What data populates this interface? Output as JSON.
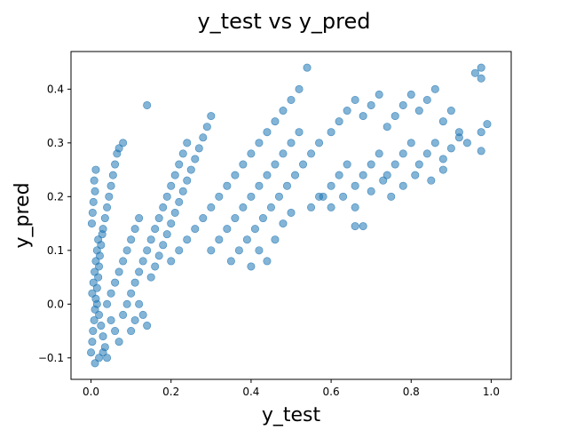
{
  "chart_data": {
    "type": "scatter",
    "title": "y_test vs y_pred",
    "xlabel": "y_test",
    "ylabel": "y_pred",
    "xlim": [
      -0.05,
      1.05
    ],
    "ylim": [
      -0.14,
      0.47
    ],
    "x_ticks": [
      0.0,
      0.2,
      0.4,
      0.6,
      0.8,
      1.0
    ],
    "x_tick_labels": [
      "0.0",
      "0.2",
      "0.4",
      "0.6",
      "0.8",
      "1.0"
    ],
    "y_ticks": [
      -0.1,
      0.0,
      0.1,
      0.2,
      0.3,
      0.4
    ],
    "y_tick_labels": [
      "−0.1",
      "0.0",
      "0.1",
      "0.2",
      "0.3",
      "0.4"
    ],
    "grid": false,
    "legend": "none",
    "marker_color": "#1f77b4",
    "marker_alpha": 0.55,
    "series": [
      {
        "points": [
          [
            0.0,
            -0.09
          ],
          [
            0.003,
            -0.07
          ],
          [
            0.005,
            -0.05
          ],
          [
            0.008,
            -0.03
          ],
          [
            0.01,
            -0.01
          ],
          [
            0.012,
            0.01
          ],
          [
            0.015,
            0.03
          ],
          [
            0.018,
            0.05
          ],
          [
            0.02,
            0.07
          ],
          [
            0.022,
            0.09
          ],
          [
            0.025,
            0.11
          ],
          [
            0.028,
            0.13
          ],
          [
            0.002,
            0.15
          ],
          [
            0.004,
            0.17
          ],
          [
            0.006,
            0.19
          ],
          [
            0.01,
            0.21
          ],
          [
            0.008,
            0.23
          ],
          [
            0.012,
            0.25
          ],
          [
            0.015,
            0.0
          ],
          [
            0.02,
            -0.02
          ],
          [
            0.025,
            -0.04
          ],
          [
            0.03,
            -0.06
          ],
          [
            0.035,
            -0.08
          ],
          [
            0.04,
            -0.1
          ],
          [
            0.003,
            0.02
          ],
          [
            0.006,
            0.04
          ],
          [
            0.009,
            0.06
          ],
          [
            0.012,
            0.08
          ],
          [
            0.015,
            0.1
          ],
          [
            0.018,
            0.12
          ],
          [
            0.03,
            0.14
          ],
          [
            0.035,
            0.16
          ],
          [
            0.04,
            0.18
          ],
          [
            0.045,
            0.2
          ],
          [
            0.05,
            0.22
          ],
          [
            0.055,
            0.24
          ],
          [
            0.06,
            0.26
          ],
          [
            0.065,
            0.28
          ],
          [
            0.07,
            0.29
          ],
          [
            0.04,
            0.0
          ],
          [
            0.05,
            0.02
          ],
          [
            0.06,
            0.04
          ],
          [
            0.07,
            0.06
          ],
          [
            0.08,
            0.08
          ],
          [
            0.09,
            0.1
          ],
          [
            0.1,
            0.12
          ],
          [
            0.11,
            0.14
          ],
          [
            0.12,
            0.16
          ],
          [
            0.05,
            -0.03
          ],
          [
            0.06,
            -0.05
          ],
          [
            0.07,
            -0.07
          ],
          [
            0.08,
            -0.02
          ],
          [
            0.09,
            0.0
          ],
          [
            0.1,
            0.02
          ],
          [
            0.11,
            0.04
          ],
          [
            0.12,
            0.06
          ],
          [
            0.13,
            0.08
          ],
          [
            0.14,
            0.1
          ],
          [
            0.15,
            0.12
          ],
          [
            0.16,
            0.14
          ],
          [
            0.17,
            0.16
          ],
          [
            0.18,
            0.18
          ],
          [
            0.19,
            0.2
          ],
          [
            0.2,
            0.22
          ],
          [
            0.21,
            0.24
          ],
          [
            0.22,
            0.26
          ],
          [
            0.23,
            0.28
          ],
          [
            0.24,
            0.3
          ],
          [
            0.15,
            0.05
          ],
          [
            0.16,
            0.07
          ],
          [
            0.17,
            0.09
          ],
          [
            0.18,
            0.11
          ],
          [
            0.19,
            0.13
          ],
          [
            0.2,
            0.15
          ],
          [
            0.21,
            0.17
          ],
          [
            0.22,
            0.19
          ],
          [
            0.23,
            0.21
          ],
          [
            0.24,
            0.23
          ],
          [
            0.25,
            0.25
          ],
          [
            0.26,
            0.27
          ],
          [
            0.27,
            0.29
          ],
          [
            0.28,
            0.31
          ],
          [
            0.29,
            0.33
          ],
          [
            0.3,
            0.35
          ],
          [
            0.2,
            0.08
          ],
          [
            0.22,
            0.1
          ],
          [
            0.24,
            0.12
          ],
          [
            0.26,
            0.14
          ],
          [
            0.28,
            0.16
          ],
          [
            0.3,
            0.18
          ],
          [
            0.32,
            0.2
          ],
          [
            0.34,
            0.22
          ],
          [
            0.36,
            0.24
          ],
          [
            0.38,
            0.26
          ],
          [
            0.4,
            0.28
          ],
          [
            0.42,
            0.3
          ],
          [
            0.44,
            0.32
          ],
          [
            0.46,
            0.34
          ],
          [
            0.48,
            0.36
          ],
          [
            0.5,
            0.38
          ],
          [
            0.52,
            0.4
          ],
          [
            0.54,
            0.44
          ],
          [
            0.3,
            0.1
          ],
          [
            0.32,
            0.12
          ],
          [
            0.34,
            0.14
          ],
          [
            0.36,
            0.16
          ],
          [
            0.38,
            0.18
          ],
          [
            0.4,
            0.2
          ],
          [
            0.42,
            0.22
          ],
          [
            0.44,
            0.24
          ],
          [
            0.46,
            0.26
          ],
          [
            0.48,
            0.28
          ],
          [
            0.5,
            0.3
          ],
          [
            0.52,
            0.32
          ],
          [
            0.35,
            0.08
          ],
          [
            0.37,
            0.1
          ],
          [
            0.39,
            0.12
          ],
          [
            0.41,
            0.14
          ],
          [
            0.43,
            0.16
          ],
          [
            0.45,
            0.18
          ],
          [
            0.47,
            0.2
          ],
          [
            0.49,
            0.22
          ],
          [
            0.51,
            0.24
          ],
          [
            0.53,
            0.26
          ],
          [
            0.55,
            0.28
          ],
          [
            0.57,
            0.3
          ],
          [
            0.6,
            0.32
          ],
          [
            0.62,
            0.34
          ],
          [
            0.64,
            0.36
          ],
          [
            0.66,
            0.38
          ],
          [
            0.68,
            0.35
          ],
          [
            0.7,
            0.37
          ],
          [
            0.72,
            0.39
          ],
          [
            0.74,
            0.33
          ],
          [
            0.76,
            0.35
          ],
          [
            0.78,
            0.37
          ],
          [
            0.8,
            0.39
          ],
          [
            0.82,
            0.36
          ],
          [
            0.84,
            0.38
          ],
          [
            0.86,
            0.4
          ],
          [
            0.88,
            0.34
          ],
          [
            0.9,
            0.36
          ],
          [
            0.92,
            0.32
          ],
          [
            0.94,
            0.3
          ],
          [
            0.58,
            0.2
          ],
          [
            0.6,
            0.22
          ],
          [
            0.62,
            0.24
          ],
          [
            0.64,
            0.26
          ],
          [
            0.66,
            0.22
          ],
          [
            0.68,
            0.24
          ],
          [
            0.7,
            0.26
          ],
          [
            0.72,
            0.28
          ],
          [
            0.74,
            0.24
          ],
          [
            0.76,
            0.26
          ],
          [
            0.78,
            0.28
          ],
          [
            0.8,
            0.3
          ],
          [
            0.82,
            0.26
          ],
          [
            0.84,
            0.28
          ],
          [
            0.86,
            0.3
          ],
          [
            0.88,
            0.27
          ],
          [
            0.9,
            0.29
          ],
          [
            0.92,
            0.31
          ],
          [
            0.55,
            0.18
          ],
          [
            0.57,
            0.2
          ],
          [
            0.6,
            0.18
          ],
          [
            0.63,
            0.2
          ],
          [
            0.66,
            0.18
          ],
          [
            0.7,
            0.21
          ],
          [
            0.73,
            0.23
          ],
          [
            0.75,
            0.2
          ],
          [
            0.78,
            0.22
          ],
          [
            0.81,
            0.24
          ],
          [
            0.85,
            0.23
          ],
          [
            0.88,
            0.25
          ],
          [
            0.4,
            0.07
          ],
          [
            0.42,
            0.1
          ],
          [
            0.44,
            0.08
          ],
          [
            0.46,
            0.12
          ],
          [
            0.48,
            0.15
          ],
          [
            0.5,
            0.17
          ],
          [
            0.96,
            0.43
          ],
          [
            0.975,
            0.44
          ],
          [
            0.975,
            0.42
          ],
          [
            0.99,
            0.335
          ],
          [
            0.975,
            0.32
          ],
          [
            0.975,
            0.285
          ],
          [
            0.68,
            0.145
          ],
          [
            0.66,
            0.145
          ],
          [
            0.14,
            0.37
          ],
          [
            0.12,
            0.0
          ],
          [
            0.13,
            -0.02
          ],
          [
            0.14,
            -0.04
          ],
          [
            0.01,
            -0.11
          ],
          [
            0.02,
            -0.1
          ],
          [
            0.03,
            -0.09
          ],
          [
            0.1,
            -0.05
          ],
          [
            0.11,
            -0.03
          ],
          [
            0.08,
            0.3
          ]
        ]
      }
    ]
  }
}
